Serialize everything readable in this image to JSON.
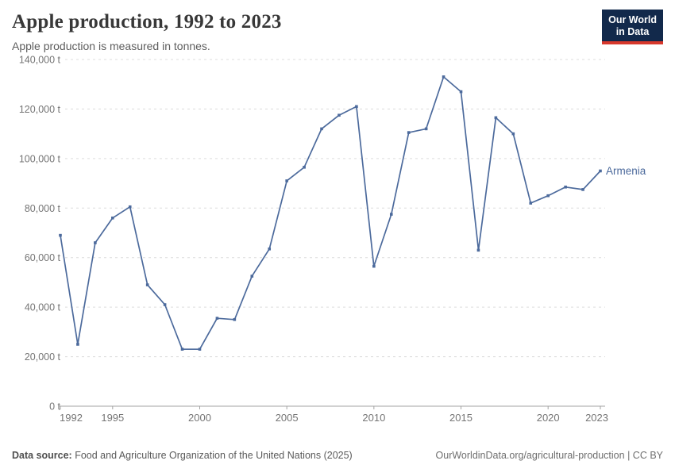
{
  "header": {
    "title": "Apple production, 1992 to 2023",
    "subtitle": "Apple production is measured in tonnes.",
    "logo": {
      "line1": "Our World",
      "line2": "in Data",
      "bg_color": "#12294b",
      "accent_color": "#d7382c"
    }
  },
  "chart_data": {
    "type": "line",
    "title": "Apple production, 1992 to 2023",
    "ylabel": "",
    "xlabel": "",
    "unit": " t",
    "grid": true,
    "legend_position": "end-of-line",
    "xlim": [
      1992,
      2023
    ],
    "ylim": [
      0,
      140000
    ],
    "x_ticks": [
      1992,
      1995,
      2000,
      2005,
      2010,
      2015,
      2020,
      2023
    ],
    "y_ticks": [
      0,
      20000,
      40000,
      60000,
      80000,
      100000,
      120000,
      140000
    ],
    "series": [
      {
        "name": "Armenia",
        "color": "#4c6a9c",
        "x": [
          1992,
          1993,
          1994,
          1995,
          1996,
          1997,
          1998,
          1999,
          2000,
          2001,
          2002,
          2003,
          2004,
          2005,
          2006,
          2007,
          2008,
          2009,
          2010,
          2011,
          2012,
          2013,
          2014,
          2015,
          2016,
          2017,
          2018,
          2019,
          2020,
          2021,
          2022,
          2023
        ],
        "values": [
          69000,
          25000,
          66000,
          76000,
          80500,
          49000,
          41000,
          23000,
          23000,
          35500,
          35000,
          52500,
          63500,
          91000,
          96500,
          112000,
          117500,
          121000,
          56500,
          77500,
          110500,
          112000,
          133000,
          127000,
          63000,
          116500,
          110000,
          82000,
          85000,
          88500,
          87500,
          95000
        ]
      }
    ],
    "colors": {
      "gridline": "#dcdcdc",
      "axis": "#a3a3a3",
      "tick_label": "#757575"
    }
  },
  "footer": {
    "datasource_label": "Data source:",
    "datasource": " Food and Agriculture Organization of the United Nations (2025)",
    "url": "OurWorldinData.org/agricultural-production",
    "separator": " | ",
    "license": "CC BY"
  }
}
